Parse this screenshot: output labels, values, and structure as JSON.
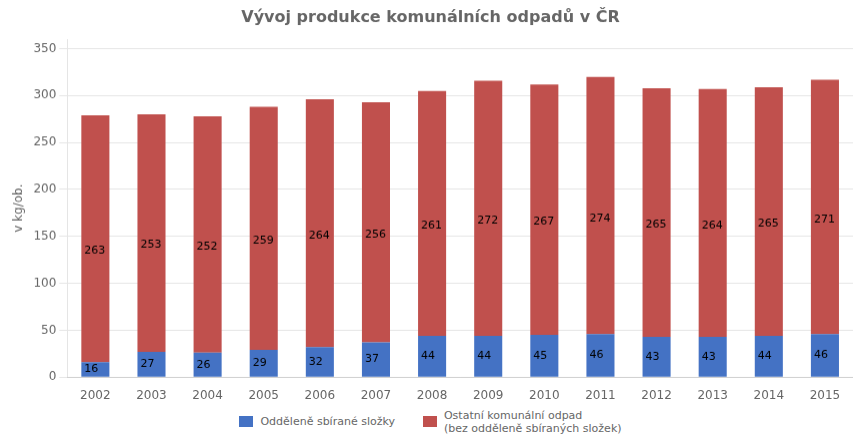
{
  "chart_data": {
    "type": "bar",
    "title": "Vývoj produkce komunálních odpadů v ČR",
    "ylabel": "v kg/ob.",
    "categories": [
      2002,
      2003,
      2004,
      2005,
      2006,
      2007,
      2008,
      2009,
      2010,
      2011,
      2012,
      2013,
      2014,
      2015
    ],
    "series": [
      {
        "name": "Odděleně sbírané složky",
        "color": "#4472C4",
        "values": [
          16,
          27,
          26,
          29,
          32,
          37,
          44,
          44,
          45,
          46,
          43,
          43,
          44,
          46
        ]
      },
      {
        "name": "Ostatní komunální odpad\n(bez odděleně sbíraných složek)",
        "color": "#C0504D",
        "values": [
          263,
          253,
          252,
          259,
          264,
          256,
          261,
          272,
          267,
          274,
          265,
          264,
          265,
          271
        ]
      }
    ],
    "stacked": true,
    "data_labels": true,
    "ylim": [
      0,
      360
    ],
    "yticks": [
      0,
      50,
      100,
      150,
      200,
      250,
      300,
      350
    ],
    "grid": true,
    "legend": "bottom"
  }
}
